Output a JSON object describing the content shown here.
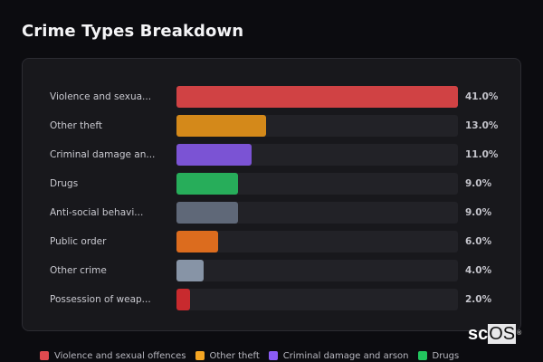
{
  "page": {
    "title": "Crime Types Breakdown"
  },
  "chart_data": {
    "type": "bar",
    "orientation": "horizontal",
    "title": "Crime Types Breakdown",
    "categories": [
      "Violence and sexual offences",
      "Other theft",
      "Criminal damage and arson",
      "Drugs",
      "Anti-social behaviour",
      "Public order",
      "Other crime",
      "Possession of weapons"
    ],
    "display_labels": [
      "Violence and sexua...",
      "Other theft",
      "Criminal damage an...",
      "Drugs",
      "Anti-social behavi...",
      "Public order",
      "Other crime",
      "Possession of weap..."
    ],
    "values": [
      41.0,
      13.0,
      11.0,
      9.0,
      9.0,
      6.0,
      4.0,
      2.0
    ],
    "value_labels": [
      "41.0%",
      "13.0%",
      "11.0%",
      "9.0%",
      "9.0%",
      "6.0%",
      "4.0%",
      "2.0%"
    ],
    "colors": [
      "#d04244",
      "#d4891a",
      "#7b53d4",
      "#27ad5a",
      "#5f6878",
      "#dc6c1e",
      "#8794a6",
      "#c82a2e"
    ],
    "xlabel": "",
    "ylabel": "",
    "xlim": [
      0,
      41
    ],
    "unit": "%",
    "grid": false,
    "legend_position": "bottom",
    "legend": [
      {
        "label": "Violence and sexual offences",
        "color": "#e04a4f"
      },
      {
        "label": "Other theft",
        "color": "#f5a623"
      },
      {
        "label": "Criminal damage and arson",
        "color": "#8b5cf6"
      },
      {
        "label": "Drugs",
        "color": "#22c55e"
      }
    ]
  },
  "watermark": {
    "prefix": "sc",
    "boxed": "OS",
    "mark": "®"
  }
}
